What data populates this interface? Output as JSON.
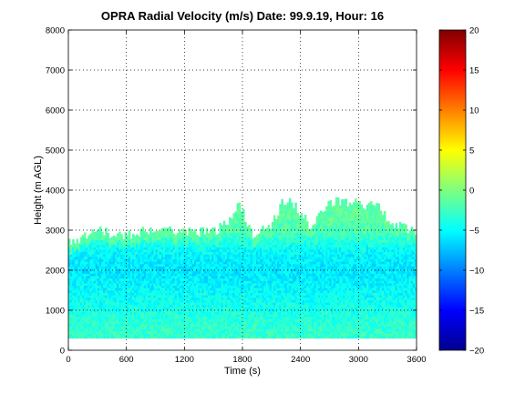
{
  "chart_data": {
    "type": "heatmap",
    "title": "OPRA Radial Velocity (m/s)  Date: 99.9.19, Hour: 16",
    "xlabel": "Time (s)",
    "ylabel": "Height (m AGL)",
    "xlim": [
      0,
      3600
    ],
    "ylim": [
      0,
      8000
    ],
    "xticks": [
      0,
      600,
      1200,
      1800,
      2400,
      3000,
      3600
    ],
    "yticks": [
      0,
      1000,
      2000,
      3000,
      4000,
      5000,
      6000,
      7000,
      8000
    ],
    "grid": true,
    "colormap": "jet",
    "colorbar": {
      "range": [
        -20,
        20
      ],
      "ticks": [
        -20,
        -15,
        -10,
        -5,
        0,
        5,
        10,
        15,
        20
      ]
    },
    "data_bottom_m": 300,
    "echo_top_profile_m": [
      {
        "t": 0,
        "top": 2750
      },
      {
        "t": 100,
        "top": 2700
      },
      {
        "t": 200,
        "top": 2900
      },
      {
        "t": 300,
        "top": 3100
      },
      {
        "t": 400,
        "top": 2950
      },
      {
        "t": 500,
        "top": 2850
      },
      {
        "t": 600,
        "top": 2850
      },
      {
        "t": 700,
        "top": 2950
      },
      {
        "t": 800,
        "top": 3000
      },
      {
        "t": 900,
        "top": 2900
      },
      {
        "t": 1000,
        "top": 2950
      },
      {
        "t": 1100,
        "top": 3000
      },
      {
        "t": 1200,
        "top": 3000
      },
      {
        "t": 1300,
        "top": 2950
      },
      {
        "t": 1400,
        "top": 2950
      },
      {
        "t": 1500,
        "top": 2950
      },
      {
        "t": 1600,
        "top": 3100
      },
      {
        "t": 1700,
        "top": 3400
      },
      {
        "t": 1750,
        "top": 3650
      },
      {
        "t": 1800,
        "top": 3500
      },
      {
        "t": 1900,
        "top": 2900
      },
      {
        "t": 2000,
        "top": 3000
      },
      {
        "t": 2100,
        "top": 3100
      },
      {
        "t": 2200,
        "top": 3650
      },
      {
        "t": 2300,
        "top": 3700
      },
      {
        "t": 2400,
        "top": 3450
      },
      {
        "t": 2500,
        "top": 3100
      },
      {
        "t": 2600,
        "top": 3350
      },
      {
        "t": 2700,
        "top": 3650
      },
      {
        "t": 2800,
        "top": 3750
      },
      {
        "t": 2900,
        "top": 3700
      },
      {
        "t": 3000,
        "top": 3700
      },
      {
        "t": 3100,
        "top": 3600
      },
      {
        "t": 3200,
        "top": 3650
      },
      {
        "t": 3300,
        "top": 3300
      },
      {
        "t": 3400,
        "top": 3100
      },
      {
        "t": 3500,
        "top": 3050
      },
      {
        "t": 3600,
        "top": 2950
      }
    ],
    "velocity_by_height_m_s": [
      {
        "height": 500,
        "velocity": -3
      },
      {
        "height": 1000,
        "velocity": -4
      },
      {
        "height": 1500,
        "velocity": -5
      },
      {
        "height": 2000,
        "velocity": -6
      },
      {
        "height": 2500,
        "velocity": -5
      },
      {
        "height": 3000,
        "velocity": -2
      },
      {
        "height": 3500,
        "velocity": -1
      }
    ]
  }
}
